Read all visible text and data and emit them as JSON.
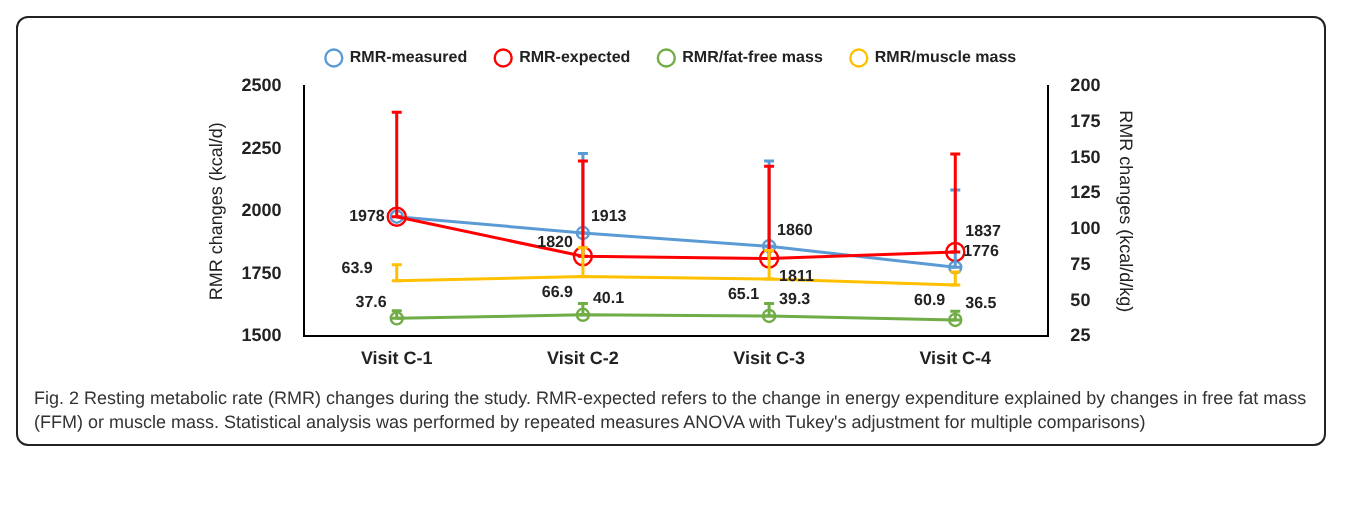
{
  "chart_data": {
    "type": "line",
    "ylabel": "RMR changes (kcal/d)",
    "y2label": "RMR changes (kcal/d/kg)",
    "categories": [
      "Visit C-1",
      "Visit C-2",
      "Visit C-3",
      "Visit C-4"
    ],
    "series": [
      {
        "name": "RMR-measured",
        "color": "#5b9bd5",
        "values": [
          1978,
          1913,
          1860,
          1776
        ],
        "errors": [
          null,
          [
            1913,
            2230
          ],
          [
            1860,
            2200
          ],
          [
            1776,
            2085
          ]
        ],
        "value_labels": [
          "1978",
          "1913",
          "1860",
          "1776"
        ]
      },
      {
        "name": "RMR-expected",
        "color": "#ff0000",
        "values": [
          1978,
          1820,
          1811,
          1837
        ],
        "errors": [
          [
            1978,
            2395
          ],
          [
            1820,
            2200
          ],
          [
            1811,
            2180
          ],
          [
            1837,
            2228
          ]
        ],
        "value_labels": [
          null,
          "1820",
          "1811",
          "1837"
        ]
      },
      {
        "name": "RMR/fat-free mass",
        "color": "#70ad47",
        "axis": "y2",
        "values": [
          37.6,
          40.1,
          39.3,
          36.5
        ],
        "errors": [
          [
            37.6,
            43
          ],
          [
            40.1,
            48
          ],
          [
            39.3,
            48
          ],
          [
            36.5,
            42.5
          ]
        ],
        "value_labels": [
          "37.6",
          "40.1",
          "39.3",
          "36.5"
        ]
      },
      {
        "name": "RMR/muscle mass",
        "color": "#ffc000",
        "axis": "y2",
        "marker": "none",
        "values": [
          63.9,
          66.9,
          65.1,
          60.9
        ],
        "errors": [
          [
            63.9,
            75
          ],
          [
            66.9,
            87
          ],
          [
            65.1,
            85
          ],
          [
            60.9,
            70
          ]
        ],
        "value_labels": [
          "63.9",
          "66.9",
          "65.1",
          "60.9"
        ]
      }
    ],
    "ylim": [
      1500,
      2500
    ],
    "yticks": [
      1500,
      1750,
      2000,
      2250,
      2500
    ],
    "y2lim": [
      25,
      200
    ],
    "y2ticks": [
      25,
      50,
      75,
      100,
      125,
      150,
      175,
      200
    ],
    "grid": false,
    "legend": "top",
    "marker": "circle",
    "line_style": "solid",
    "annotations": [
      "Fig. 2 Resting metabolic rate (RMR) changes during the study. RMR-expected refers to the change in energy expenditure explained by changes in free fat mass (FFM) or muscle mass. Statistical analysis was performed by repeated measures ANOVA with Tukey's adjustment for multiple comparisons)"
    ]
  }
}
